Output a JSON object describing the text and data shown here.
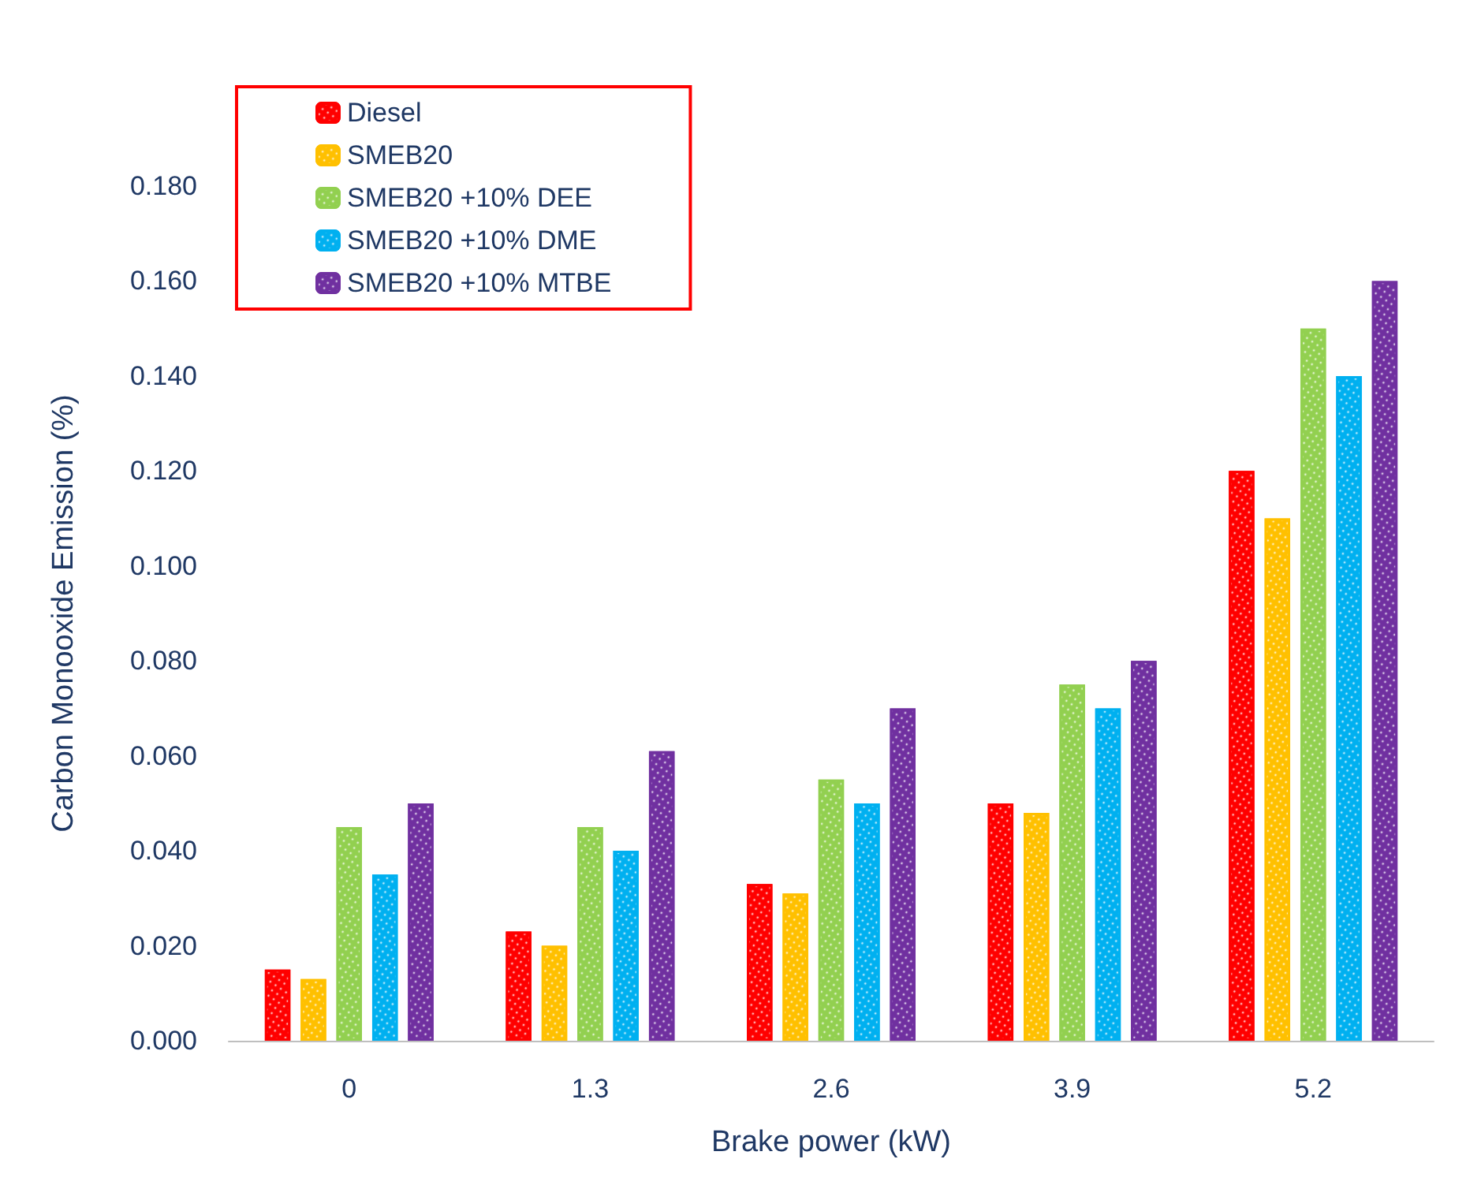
{
  "chart_data": {
    "type": "bar",
    "xlabel": "Brake power (kW)",
    "ylabel": "Carbon Monooxide Emission (%)",
    "categories": [
      "0",
      "1.3",
      "2.6",
      "3.9",
      "5.2"
    ],
    "series": [
      {
        "name": "Diesel",
        "color": "#ff0000",
        "values": [
          0.015,
          0.023,
          0.033,
          0.05,
          0.12
        ]
      },
      {
        "name": "SMEB20",
        "color": "#ffc000",
        "values": [
          0.013,
          0.02,
          0.031,
          0.048,
          0.11
        ]
      },
      {
        "name": "SMEB20 +10% DEE",
        "color": "#92d050",
        "values": [
          0.045,
          0.045,
          0.055,
          0.075,
          0.15
        ]
      },
      {
        "name": "SMEB20 +10% DME",
        "color": "#00b0f0",
        "values": [
          0.035,
          0.04,
          0.05,
          0.07,
          0.14
        ]
      },
      {
        "name": "SMEB20 +10% MTBE",
        "color": "#7030a0",
        "values": [
          0.05,
          0.061,
          0.07,
          0.08,
          0.16
        ]
      }
    ],
    "ylim": [
      0,
      0.18
    ],
    "yticks": [
      {
        "value": 0,
        "label": "0.000"
      },
      {
        "value": 0.02,
        "label": "0.020"
      },
      {
        "value": 0.04,
        "label": "0.040"
      },
      {
        "value": 0.06,
        "label": "0.060"
      },
      {
        "value": 0.08,
        "label": "0.080"
      },
      {
        "value": 0.1,
        "label": "0.100"
      },
      {
        "value": 0.12,
        "label": "0.120"
      },
      {
        "value": 0.14,
        "label": "0.140"
      },
      {
        "value": 0.16,
        "label": "0.160"
      },
      {
        "value": 0.18,
        "label": "0.180"
      }
    ],
    "grid": false,
    "legend": "top left"
  }
}
